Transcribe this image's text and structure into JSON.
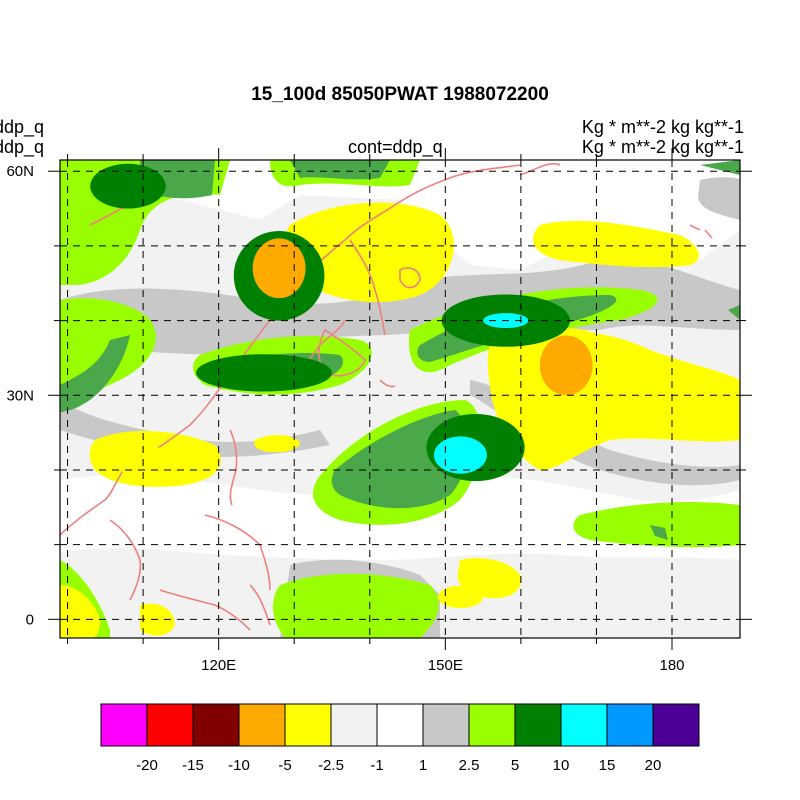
{
  "header": {
    "title": "15_100d 85050PWAT  1988072200",
    "left_line1": "ddp_q",
    "left_line2": "ddp_q",
    "center_subtitle": "cont=ddp_q",
    "right_line1": "Kg  * m**-2 kg kg**-1",
    "right_line2": "Kg  * m**-2 kg kg**-1"
  },
  "chart_data": {
    "type": "heatmap",
    "title": "15_100d 85050PWAT  1988072200",
    "projection": "lat-lon",
    "xlim": [
      99,
      189
    ],
    "ylim": [
      -2.5,
      61.5
    ],
    "x_ticks": [
      {
        "value": 120,
        "label": "120E"
      },
      {
        "value": 150,
        "label": "150E"
      },
      {
        "value": 180,
        "label": "180"
      }
    ],
    "y_ticks": [
      {
        "value": 0,
        "label": "0"
      },
      {
        "value": 30,
        "label": "30N"
      },
      {
        "value": 60,
        "label": "60N"
      }
    ],
    "grid": "dashed, every 10 degrees",
    "contour_levels": [
      -20,
      -15,
      -10,
      -5,
      -2.5,
      -1,
      1,
      2.5,
      5,
      10,
      15,
      20
    ],
    "level_labels": [
      "-20",
      "-15",
      "-10",
      "-5",
      "-2.5",
      "-1",
      "1",
      "2.5",
      "5",
      "10",
      "15",
      "20"
    ],
    "colors": [
      "#ff00ff",
      "#ff0000",
      "#800000",
      "#ffaa00",
      "#ffff00",
      "#f2f2f2",
      "#ffffff",
      "#c8c8c8",
      "#99ff00",
      "#008000",
      "#00ffff",
      "#0099ff",
      "#4b0096"
    ],
    "positive_regions": [
      {
        "lon": 128,
        "lat": 46,
        "rx": 6,
        "ry": 6,
        "value": 5
      },
      {
        "lon": 128,
        "lat": 47,
        "rx": 3.5,
        "ry": 4,
        "value": -8
      },
      {
        "lon": 166,
        "lat": 33,
        "rx": 8,
        "ry": 6,
        "value": -3
      },
      {
        "lon": 166,
        "lat": 34,
        "rx": 3.5,
        "ry": 4,
        "value": -8
      },
      {
        "lon": 154,
        "lat": 23,
        "rx": 6.5,
        "ry": 4.5,
        "value": 8
      },
      {
        "lon": 152,
        "lat": 22,
        "rx": 3.5,
        "ry": 2.5,
        "value": 12
      },
      {
        "lon": 158,
        "lat": 40,
        "rx": 8.5,
        "ry": 3.5,
        "value": 8
      },
      {
        "lon": 158,
        "lat": 40,
        "rx": 3,
        "ry": 1,
        "value": 12
      },
      {
        "lon": 126,
        "lat": 33,
        "rx": 9,
        "ry": 2.5,
        "value": 7
      },
      {
        "lon": 108,
        "lat": 58,
        "rx": 5,
        "ry": 3,
        "value": 7
      },
      {
        "lon": 112,
        "lat": 21,
        "rx": 6,
        "ry": 2,
        "value": -3
      },
      {
        "lon": 152,
        "lat": 3,
        "rx": 3,
        "ry": 1.5,
        "value": -3
      },
      {
        "lon": 100,
        "lat": 1,
        "rx": 2,
        "ry": 2,
        "value": -3
      }
    ]
  }
}
